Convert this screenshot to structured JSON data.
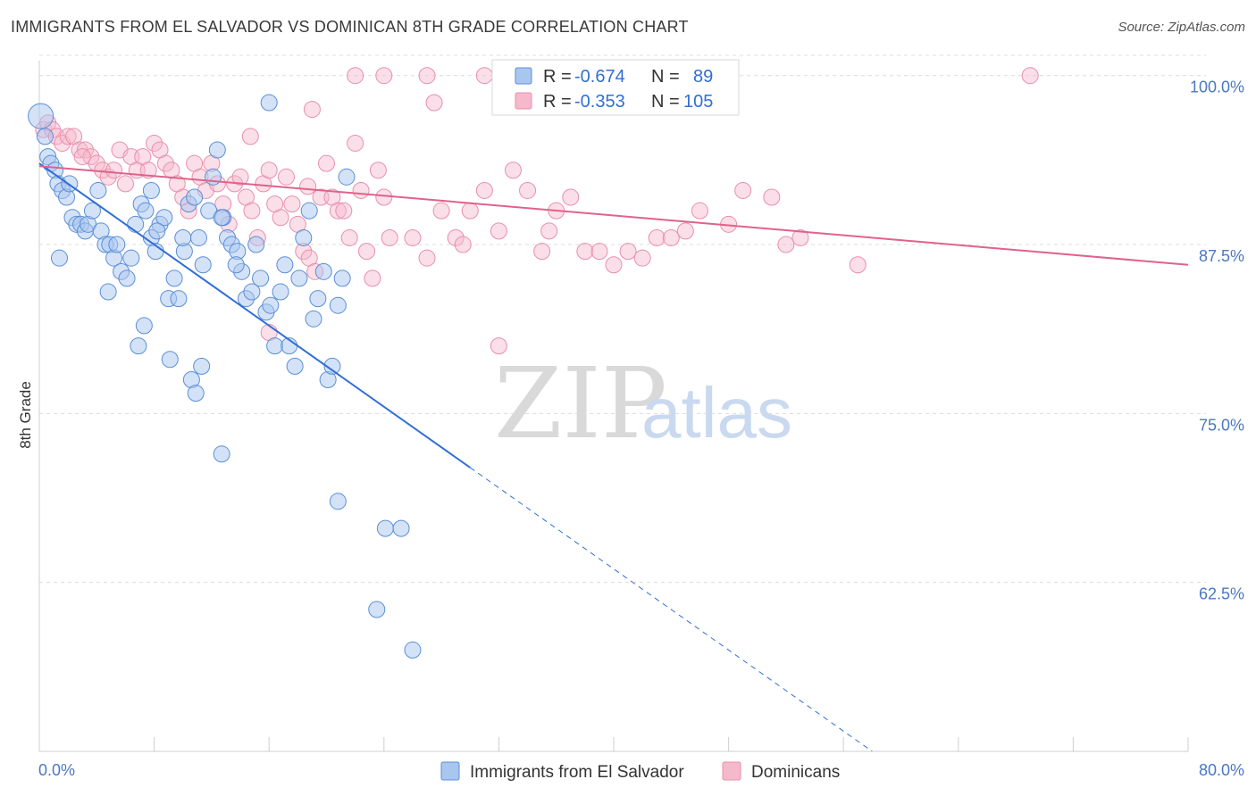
{
  "header": {
    "title": "IMMIGRANTS FROM EL SALVADOR VS DOMINICAN 8TH GRADE CORRELATION CHART",
    "source": "Source: ZipAtlas.com"
  },
  "watermark": {
    "zip": "ZIP",
    "atlas": "atlas"
  },
  "colors": {
    "blue_fill": "#a9c6ef",
    "blue_stroke": "#5a8fd8",
    "blue_line": "#2f6fd6",
    "pink_fill": "#f6b9cc",
    "pink_stroke": "#e88fab",
    "pink_line": "#e0628a",
    "tick_text": "#4a78c2",
    "grid": "#dcdcdc"
  },
  "legend": {
    "rows": [
      {
        "r_label": "R = ",
        "r_value": "-0.674",
        "n_label": "N = ",
        "n_value": "89"
      },
      {
        "r_label": "R = ",
        "r_value": "-0.353",
        "n_label": "N = ",
        "n_value": "105"
      }
    ],
    "bottom": [
      "Immigrants from El Salvador",
      "Dominicans"
    ]
  },
  "chart_data": {
    "type": "scatter",
    "title": "IMMIGRANTS FROM EL SALVADOR VS DOMINICAN 8TH GRADE CORRELATION CHART",
    "xlabel": "",
    "ylabel": "8th Grade",
    "xlim": [
      0,
      80
    ],
    "ylim": [
      50,
      101.5
    ],
    "x_tick_labels": [
      "0.0%",
      "80.0%"
    ],
    "y_ticks": [
      62.5,
      75.0,
      87.5,
      100.0
    ],
    "y_tick_labels": [
      "62.5%",
      "75.0%",
      "87.5%",
      "100.0%"
    ],
    "grid": true,
    "legend_position": "top-center",
    "series": [
      {
        "name": "Immigrants from El Salvador",
        "r": -0.674,
        "n": 89,
        "trend": {
          "x0": 0,
          "y0": 93.5,
          "x1": 30,
          "y1": 71.0,
          "dashed_to_x": 58
        },
        "points": [
          [
            0.1,
            97
          ],
          [
            0.4,
            95.5
          ],
          [
            0.6,
            94
          ],
          [
            0.8,
            93.5
          ],
          [
            1.1,
            93
          ],
          [
            1.3,
            92
          ],
          [
            1.6,
            91.5
          ],
          [
            1.9,
            91
          ],
          [
            2.1,
            92
          ],
          [
            2.3,
            89.5
          ],
          [
            2.6,
            89
          ],
          [
            2.9,
            89
          ],
          [
            3.2,
            88.5
          ],
          [
            3.4,
            89
          ],
          [
            3.7,
            90
          ],
          [
            4.1,
            91.5
          ],
          [
            4.3,
            88.5
          ],
          [
            4.6,
            87.5
          ],
          [
            4.9,
            87.5
          ],
          [
            5.2,
            86.5
          ],
          [
            5.4,
            87.5
          ],
          [
            5.7,
            85.5
          ],
          [
            6.1,
            85
          ],
          [
            6.4,
            86.5
          ],
          [
            6.7,
            89
          ],
          [
            7.1,
            90.5
          ],
          [
            7.4,
            90
          ],
          [
            7.8,
            88
          ],
          [
            8.1,
            87
          ],
          [
            8.4,
            89
          ],
          [
            8.7,
            89.5
          ],
          [
            9.0,
            83.5
          ],
          [
            9.4,
            85
          ],
          [
            9.7,
            83.5
          ],
          [
            10.1,
            87
          ],
          [
            10.4,
            90.5
          ],
          [
            10.8,
            91
          ],
          [
            11.1,
            88
          ],
          [
            11.4,
            86
          ],
          [
            11.8,
            90
          ],
          [
            12.1,
            92.5
          ],
          [
            12.4,
            94.5
          ],
          [
            12.8,
            89.5
          ],
          [
            13.1,
            88
          ],
          [
            13.4,
            87.5
          ],
          [
            13.8,
            87
          ],
          [
            14.1,
            85.5
          ],
          [
            14.4,
            83.5
          ],
          [
            14.8,
            84
          ],
          [
            15.1,
            87.5
          ],
          [
            15.4,
            85
          ],
          [
            15.8,
            82.5
          ],
          [
            16.1,
            83
          ],
          [
            16.4,
            80
          ],
          [
            16.8,
            84
          ],
          [
            17.1,
            86
          ],
          [
            17.4,
            80
          ],
          [
            17.8,
            78.5
          ],
          [
            18.1,
            85
          ],
          [
            18.4,
            88
          ],
          [
            18.8,
            90
          ],
          [
            19.1,
            82
          ],
          [
            19.4,
            83.5
          ],
          [
            19.8,
            85.5
          ],
          [
            20.1,
            77.5
          ],
          [
            20.4,
            78.5
          ],
          [
            20.8,
            83
          ],
          [
            21.1,
            85
          ],
          [
            21.4,
            92.5
          ],
          [
            4.8,
            84
          ],
          [
            6.9,
            80
          ],
          [
            7.3,
            81.5
          ],
          [
            9.1,
            79
          ],
          [
            10.6,
            77.5
          ],
          [
            10.9,
            76.5
          ],
          [
            11.3,
            78.5
          ],
          [
            12.7,
            89.5
          ],
          [
            16.0,
            98
          ],
          [
            7.8,
            91.5
          ],
          [
            8.2,
            88.5
          ],
          [
            10.0,
            88
          ],
          [
            13.7,
            86
          ],
          [
            1.4,
            86.5
          ],
          [
            12.7,
            72
          ],
          [
            20.8,
            68.5
          ],
          [
            24.1,
            66.5
          ],
          [
            25.2,
            66.5
          ],
          [
            23.5,
            60.5
          ],
          [
            26.0,
            57.5
          ]
        ]
      },
      {
        "name": "Dominicans",
        "r": -0.353,
        "n": 105,
        "trend": {
          "x0": 0,
          "y0": 93.3,
          "x1": 80,
          "y1": 86.0
        },
        "points": [
          [
            0.3,
            96
          ],
          [
            0.6,
            96.5
          ],
          [
            0.9,
            96
          ],
          [
            1.2,
            95.5
          ],
          [
            1.6,
            95
          ],
          [
            2.0,
            95.5
          ],
          [
            2.4,
            95.5
          ],
          [
            2.8,
            94.5
          ],
          [
            3.2,
            94.5
          ],
          [
            3.6,
            94
          ],
          [
            4.0,
            93.5
          ],
          [
            4.4,
            93
          ],
          [
            4.8,
            92.5
          ],
          [
            5.2,
            93
          ],
          [
            5.6,
            94.5
          ],
          [
            6.0,
            92
          ],
          [
            6.4,
            94
          ],
          [
            6.8,
            93
          ],
          [
            7.2,
            94
          ],
          [
            7.6,
            93
          ],
          [
            8.0,
            95
          ],
          [
            8.4,
            94.5
          ],
          [
            8.8,
            93.5
          ],
          [
            9.2,
            93
          ],
          [
            9.6,
            92
          ],
          [
            10.0,
            91
          ],
          [
            10.4,
            90
          ],
          [
            10.8,
            93.5
          ],
          [
            11.2,
            92.5
          ],
          [
            11.6,
            91.5
          ],
          [
            12.0,
            93.5
          ],
          [
            12.4,
            92
          ],
          [
            12.8,
            90.5
          ],
          [
            13.2,
            89
          ],
          [
            13.6,
            92
          ],
          [
            14.0,
            92.5
          ],
          [
            14.4,
            91
          ],
          [
            14.8,
            90
          ],
          [
            15.2,
            88
          ],
          [
            15.6,
            92
          ],
          [
            16.0,
            93
          ],
          [
            16.4,
            90.5
          ],
          [
            16.8,
            89.5
          ],
          [
            17.2,
            92.5
          ],
          [
            17.6,
            90.5
          ],
          [
            18.0,
            89
          ],
          [
            18.4,
            87
          ],
          [
            18.8,
            86.5
          ],
          [
            19.2,
            85.5
          ],
          [
            19.6,
            91
          ],
          [
            20.0,
            93.5
          ],
          [
            20.4,
            91
          ],
          [
            20.8,
            90
          ],
          [
            21.2,
            90
          ],
          [
            21.6,
            88
          ],
          [
            22.0,
            95
          ],
          [
            22.4,
            91.5
          ],
          [
            22.8,
            87
          ],
          [
            23.2,
            85
          ],
          [
            23.6,
            93
          ],
          [
            24.0,
            91
          ],
          [
            24.4,
            88
          ],
          [
            26.0,
            88
          ],
          [
            27.0,
            86.5
          ],
          [
            28.0,
            90
          ],
          [
            29.0,
            88
          ],
          [
            29.5,
            87.5
          ],
          [
            30.0,
            90
          ],
          [
            31.0,
            91.5
          ],
          [
            32.0,
            88.5
          ],
          [
            33.0,
            93
          ],
          [
            34.0,
            91.5
          ],
          [
            35.0,
            87
          ],
          [
            35.5,
            88.5
          ],
          [
            36.0,
            90
          ],
          [
            37.0,
            91
          ],
          [
            38.0,
            87
          ],
          [
            39.0,
            87
          ],
          [
            40.0,
            86
          ],
          [
            41.0,
            87
          ],
          [
            42.0,
            86.5
          ],
          [
            43.0,
            88
          ],
          [
            44.0,
            88
          ],
          [
            45.0,
            88.5
          ],
          [
            46.0,
            90
          ],
          [
            48.0,
            89
          ],
          [
            49.0,
            91.5
          ],
          [
            51.0,
            91
          ],
          [
            52.0,
            87.5
          ],
          [
            53.0,
            88
          ],
          [
            57.0,
            86
          ],
          [
            22.0,
            100
          ],
          [
            24.0,
            100
          ],
          [
            27.0,
            100
          ],
          [
            31.0,
            100
          ],
          [
            35.5,
            100
          ],
          [
            27.5,
            98
          ],
          [
            19.0,
            97.5
          ],
          [
            69.0,
            100
          ],
          [
            18.7,
            91.8
          ],
          [
            14.7,
            95.5
          ],
          [
            3.0,
            94
          ],
          [
            32.0,
            80
          ],
          [
            16.0,
            81
          ]
        ]
      }
    ]
  }
}
